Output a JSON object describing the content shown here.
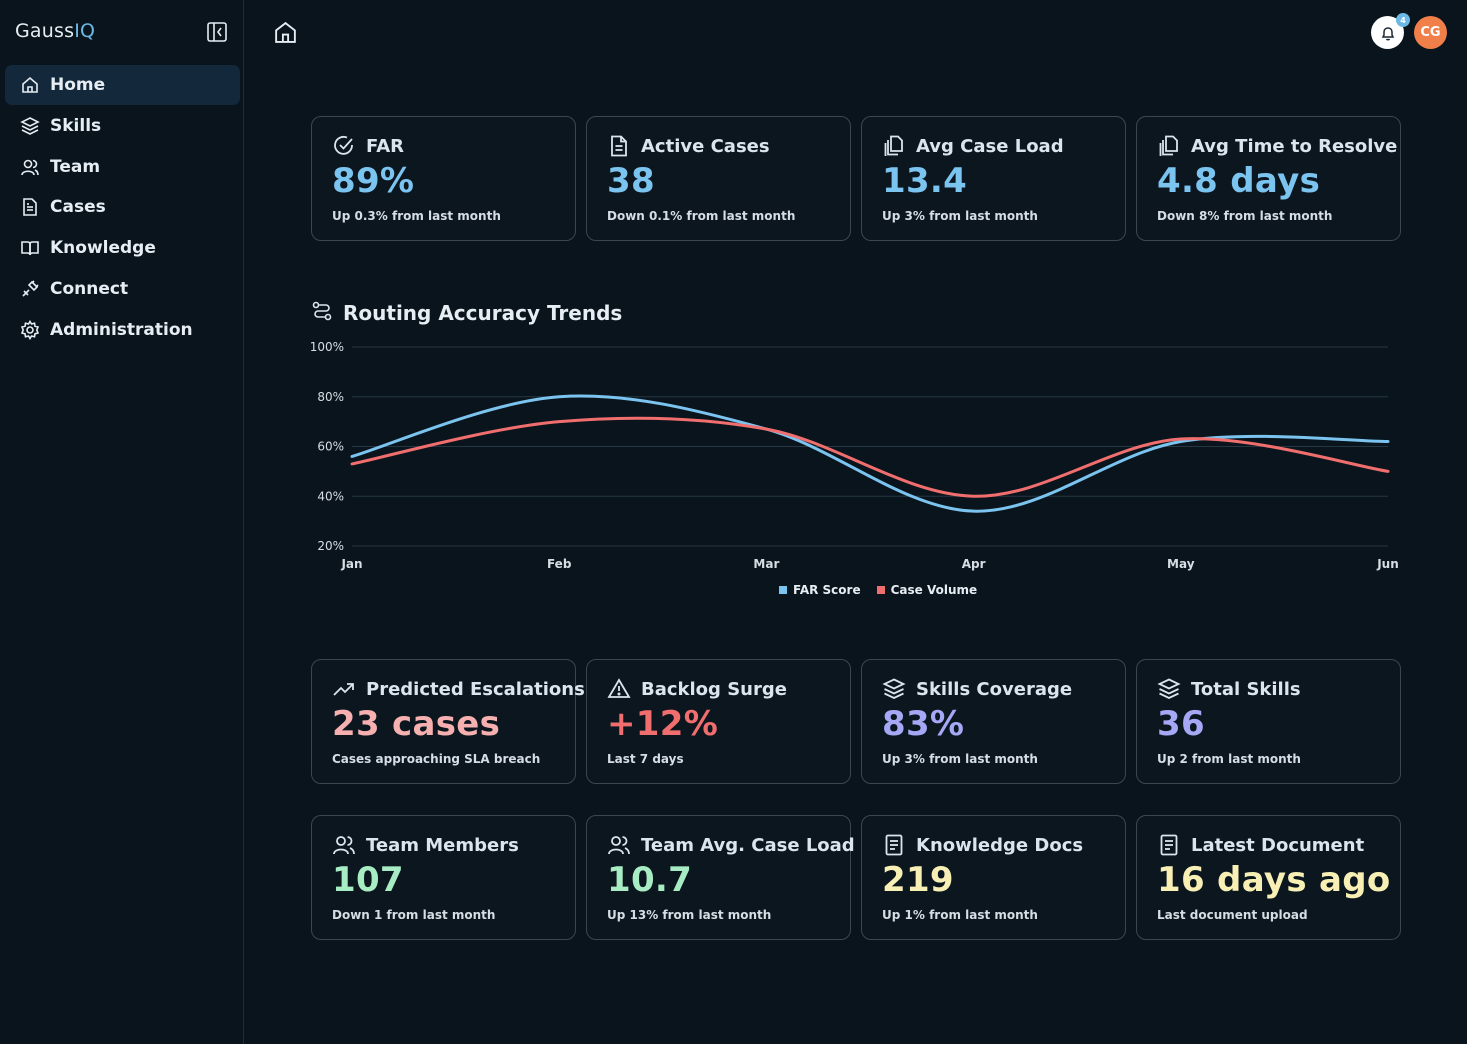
{
  "app": {
    "brand_main": "Gauss",
    "brand_accent": "IQ"
  },
  "sidebar": {
    "items": [
      {
        "label": "Home",
        "icon": "home-icon",
        "active": true
      },
      {
        "label": "Skills",
        "icon": "layers-icon"
      },
      {
        "label": "Team",
        "icon": "users-icon"
      },
      {
        "label": "Cases",
        "icon": "file-icon"
      },
      {
        "label": "Knowledge",
        "icon": "book-icon"
      },
      {
        "label": "Connect",
        "icon": "plug-icon"
      },
      {
        "label": "Administration",
        "icon": "gear-icon"
      }
    ]
  },
  "topbar": {
    "notification_count": "4",
    "avatar_initials": "CG"
  },
  "colors": {
    "blue": "#7cc4f0",
    "red": "#f06e6e",
    "purple": "#a7a8f5",
    "green": "#a8ecc4",
    "yellow": "#f7efb4",
    "pink": "#f6b0b0",
    "accent": "#6cb8e6"
  },
  "metrics_top": [
    {
      "title": "FAR",
      "value": "89%",
      "sub": "Up 0.3% from last month",
      "icon": "check-circle-icon"
    },
    {
      "title": "Active Cases",
      "value": "38",
      "sub": "Down 0.1% from last month",
      "icon": "document-icon"
    },
    {
      "title": "Avg Case Load",
      "value": "13.4",
      "sub": "Up 3% from last month",
      "icon": "copy-icon"
    },
    {
      "title": "Avg Time to Resolve",
      "value": "4.8 days",
      "sub": "Down 8% from last month",
      "icon": "copy-icon"
    }
  ],
  "metrics_mid": [
    {
      "title": "Predicted Escalations",
      "value": "23 cases",
      "sub": "Cases approaching SLA breach",
      "icon": "trending-up-icon"
    },
    {
      "title": "Backlog Surge",
      "value": "+12%",
      "sub": "Last 7 days",
      "icon": "warning-icon"
    },
    {
      "title": "Skills Coverage",
      "value": "83%",
      "sub": "Up 3% from last month",
      "icon": "layers-icon"
    },
    {
      "title": "Total Skills",
      "value": "36",
      "sub": "Up 2 from last month",
      "icon": "layers-icon"
    }
  ],
  "metrics_bot": [
    {
      "title": "Team Members",
      "value": "107",
      "sub": "Down 1 from last month",
      "icon": "users-icon"
    },
    {
      "title": "Team Avg. Case Load",
      "value": "10.7",
      "sub": "Up 13% from last month",
      "icon": "users-icon"
    },
    {
      "title": "Knowledge Docs",
      "value": "219",
      "sub": "Up 1% from last month",
      "icon": "notes-icon"
    },
    {
      "title": "Latest Document",
      "value": "16 days ago",
      "sub": "Last document upload",
      "icon": "notes-icon"
    }
  ],
  "chart_data": {
    "type": "line",
    "title": "Routing Accuracy Trends",
    "categories": [
      "Jan",
      "Feb",
      "Mar",
      "Apr",
      "May",
      "Jun"
    ],
    "ylim": [
      20,
      100
    ],
    "yticks": [
      "100%",
      "80%",
      "60%",
      "40%",
      "20%"
    ],
    "grid": true,
    "legend_position": "bottom-center",
    "series": [
      {
        "name": "FAR Score",
        "color": "#7cc4f0",
        "values": [
          56,
          80,
          67,
          34,
          62,
          62
        ]
      },
      {
        "name": "Case Volume",
        "color": "#f06e6e",
        "values": [
          53,
          70,
          67,
          40,
          63,
          50
        ]
      }
    ]
  }
}
